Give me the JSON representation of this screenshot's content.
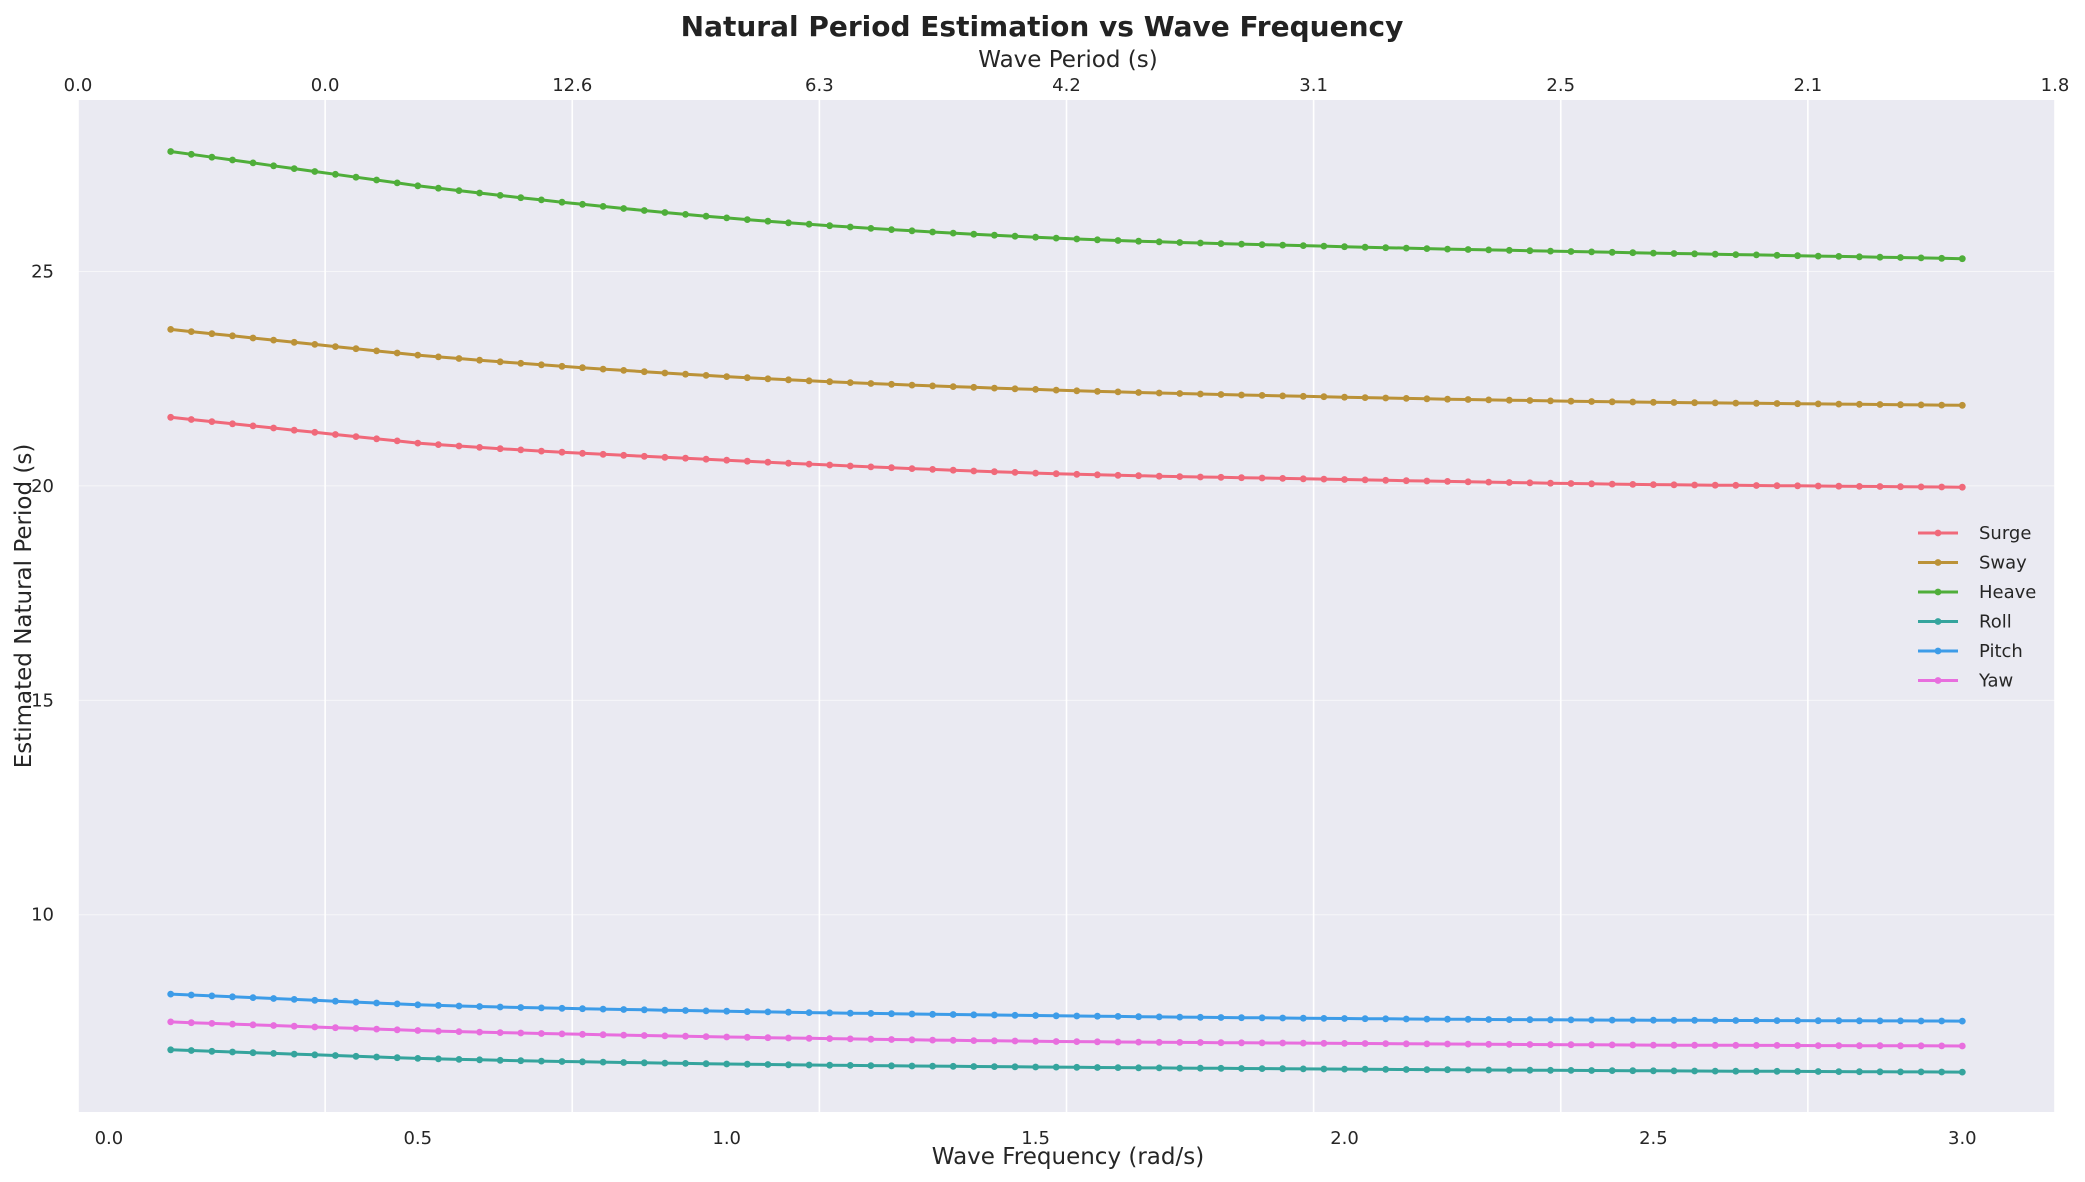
{
  "chart_data": {
    "type": "line",
    "title": "Natural Period Estimation vs Wave Frequency",
    "xlabel": "Wave Frequency (rad/s)",
    "ylabel": "Estimated Natural Period (s)",
    "top_xlabel": "Wave Period (s)",
    "xlim": [
      -0.05,
      3.15
    ],
    "ylim": [
      5.4,
      29.0
    ],
    "grid": true,
    "legend_position": "center-right",
    "x_ticks": [
      {
        "value": 0.0,
        "label": "0.0"
      },
      {
        "value": 0.5,
        "label": "0.5"
      },
      {
        "value": 1.0,
        "label": "1.0"
      },
      {
        "value": 1.5,
        "label": "1.5"
      },
      {
        "value": 2.0,
        "label": "2.0"
      },
      {
        "value": 2.5,
        "label": "2.5"
      },
      {
        "value": 3.0,
        "label": "3.0"
      }
    ],
    "y_ticks": [
      {
        "value": 10,
        "label": "10"
      },
      {
        "value": 15,
        "label": "15"
      },
      {
        "value": 20,
        "label": "20"
      },
      {
        "value": 25,
        "label": "25"
      }
    ],
    "top_ticks": [
      {
        "value": -0.05,
        "label": "0.0"
      },
      {
        "value": 0.35,
        "label": "0.0"
      },
      {
        "value": 0.75,
        "label": "12.6"
      },
      {
        "value": 1.15,
        "label": "6.3"
      },
      {
        "value": 1.55,
        "label": "4.2"
      },
      {
        "value": 1.95,
        "label": "3.1"
      },
      {
        "value": 2.35,
        "label": "2.5"
      },
      {
        "value": 2.75,
        "label": "2.1"
      },
      {
        "value": 3.15,
        "label": "1.8"
      }
    ],
    "x": {
      "start": 0.1,
      "stop": 3.0,
      "count": 88
    },
    "series": [
      {
        "name": "Surge",
        "color": "#f0697a",
        "values_at": {
          "x": [
            0.1,
            0.5,
            1.0,
            1.5,
            2.0,
            2.5,
            3.0
          ],
          "y": [
            21.6,
            21.0,
            20.6,
            20.3,
            20.15,
            20.03,
            19.97
          ]
        }
      },
      {
        "name": "Sway",
        "color": "#bb9238",
        "values_at": {
          "x": [
            0.1,
            0.5,
            1.0,
            1.5,
            2.0,
            2.5,
            3.0
          ],
          "y": [
            23.65,
            23.05,
            22.55,
            22.25,
            22.07,
            21.95,
            21.88
          ]
        }
      },
      {
        "name": "Heave",
        "color": "#4fae3a",
        "values_at": {
          "x": [
            0.1,
            0.5,
            1.0,
            1.5,
            2.0,
            2.5,
            3.0
          ],
          "y": [
            27.8,
            27.0,
            26.25,
            25.8,
            25.58,
            25.43,
            25.3
          ]
        }
      },
      {
        "name": "Roll",
        "color": "#35a49d",
        "values_at": {
          "x": [
            0.1,
            0.5,
            1.0,
            1.5,
            2.0,
            2.5,
            3.0
          ],
          "y": [
            6.85,
            6.65,
            6.52,
            6.45,
            6.4,
            6.36,
            6.33
          ]
        }
      },
      {
        "name": "Pitch",
        "color": "#3d9ce8",
        "values_at": {
          "x": [
            0.1,
            0.5,
            1.0,
            1.5,
            2.0,
            2.5,
            3.0
          ],
          "y": [
            8.15,
            7.9,
            7.75,
            7.65,
            7.58,
            7.54,
            7.52
          ]
        }
      },
      {
        "name": "Yaw",
        "color": "#e86ede",
        "values_at": {
          "x": [
            0.1,
            0.5,
            1.0,
            1.5,
            2.0,
            2.5,
            3.0
          ],
          "y": [
            7.5,
            7.3,
            7.15,
            7.05,
            7.0,
            6.96,
            6.94
          ]
        }
      }
    ],
    "colors": {
      "plot_background": "#eaeaf2",
      "grid": "#ffffff"
    }
  }
}
